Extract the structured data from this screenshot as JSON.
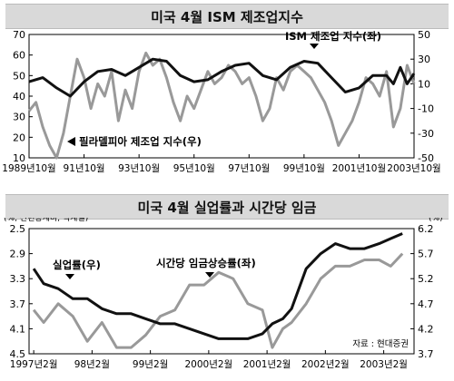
{
  "chart_data": [
    {
      "type": "line",
      "title": "미국 4월 ISM 제조업지수",
      "x_tick_labels": [
        "1989년10월",
        "91년10월",
        "93년10월",
        "95년10월",
        "97년10월",
        "99년10월",
        "2001년10월",
        "2003년10월"
      ],
      "y_left_ticks": [
        "70",
        "60",
        "50",
        "40",
        "30",
        "20",
        "10"
      ],
      "y_right_ticks": [
        "50",
        "30",
        "10",
        "-10",
        "-30",
        "-50"
      ],
      "ylim_left": [
        10,
        70
      ],
      "ylim_right": [
        -50,
        50
      ],
      "series": [
        {
          "name": "ISM 제조업 지수(좌)",
          "axis": "left",
          "color": "#111111",
          "x": [
            1989.75,
            1990.25,
            1990.75,
            1991.25,
            1991.75,
            1992.25,
            1992.75,
            1993.25,
            1993.75,
            1994.25,
            1994.75,
            1995.25,
            1995.75,
            1996.25,
            1996.75,
            1997.25,
            1997.75,
            1998.25,
            1998.75,
            1999.25,
            1999.75,
            2000.25,
            2000.75,
            2001.25,
            2001.75,
            2002.25,
            2002.75,
            2003.0,
            2003.25,
            2003.5,
            2003.75
          ],
          "y": [
            47,
            49,
            44,
            40,
            47,
            52,
            53,
            50,
            54,
            58,
            57,
            50,
            47,
            48,
            52,
            55,
            56,
            50,
            48,
            54,
            57,
            56,
            49,
            42,
            44,
            50,
            50,
            46,
            54,
            46,
            51
          ]
        },
        {
          "name": "필라델피아 제조업 지수(우)",
          "axis": "right",
          "color": "#999999",
          "x": [
            1989.75,
            1990.0,
            1990.25,
            1990.5,
            1990.75,
            1991.0,
            1991.25,
            1991.5,
            1991.75,
            1992.0,
            1992.25,
            1992.5,
            1992.75,
            1993.0,
            1993.25,
            1993.5,
            1993.75,
            1994.0,
            1994.25,
            1994.5,
            1994.75,
            1995.0,
            1995.25,
            1995.5,
            1995.75,
            1996.0,
            1996.25,
            1996.5,
            1996.75,
            1997.0,
            1997.25,
            1997.5,
            1997.75,
            1998.0,
            1998.25,
            1998.5,
            1998.75,
            1999.0,
            1999.25,
            1999.5,
            1999.75,
            2000.0,
            2000.25,
            2000.5,
            2000.75,
            2001.0,
            2001.25,
            2001.5,
            2001.75,
            2002.0,
            2002.25,
            2002.5,
            2002.75,
            2003.0,
            2003.25,
            2003.5,
            2003.75
          ],
          "y": [
            -12,
            -5,
            -25,
            -40,
            -50,
            -30,
            0,
            30,
            15,
            -10,
            10,
            0,
            20,
            -20,
            5,
            -10,
            20,
            35,
            25,
            30,
            15,
            -5,
            -20,
            0,
            -10,
            5,
            20,
            10,
            15,
            25,
            20,
            10,
            15,
            0,
            -20,
            -10,
            15,
            5,
            20,
            25,
            20,
            15,
            5,
            -5,
            -20,
            -40,
            -30,
            -20,
            -5,
            15,
            10,
            0,
            20,
            -25,
            -10,
            25,
            10
          ]
        }
      ],
      "annotations": [
        {
          "text": "ISM 제조업 지수(좌)",
          "series": "ISM 제조업 지수(좌)"
        },
        {
          "text": "필라델피아 제조업 지수(우)",
          "series": "필라델피아 제조업 지수(우)"
        }
      ]
    },
    {
      "type": "line",
      "title": "미국 4월 실업률과 시간당 임금",
      "left_axis_label": "(%, 전년동계비, 역계열)",
      "right_axis_label": "(%)",
      "x_tick_labels": [
        "1997년2월",
        "98년2월",
        "99년2월",
        "2000년2월",
        "2001년2월",
        "2002년2월",
        "2003년2월"
      ],
      "y_left_ticks": [
        "2.5",
        "2.9",
        "3.3",
        "3.7",
        "4.1",
        "4.5"
      ],
      "y_right_ticks": [
        "6.2",
        "5.7",
        "5.2",
        "4.7",
        "4.2",
        "3.7"
      ],
      "ylim_left_inverted": [
        2.5,
        4.5
      ],
      "ylim_right": [
        3.7,
        6.2
      ],
      "series": [
        {
          "name": "실업률(우)",
          "axis": "right",
          "color": "#111111",
          "x": [
            1997.08,
            1997.25,
            1997.5,
            1997.75,
            1998.0,
            1998.25,
            1998.5,
            1998.75,
            1999.0,
            1999.25,
            1999.5,
            1999.75,
            2000.0,
            2000.25,
            2000.5,
            2000.75,
            2001.0,
            2001.17,
            2001.35,
            2001.5,
            2001.75,
            2002.0,
            2002.25,
            2002.5,
            2002.75,
            2003.0,
            2003.2,
            2003.4
          ],
          "y": [
            5.4,
            5.1,
            5.0,
            4.8,
            4.8,
            4.6,
            4.5,
            4.5,
            4.4,
            4.3,
            4.3,
            4.2,
            4.1,
            4.0,
            4.0,
            4.0,
            4.1,
            4.3,
            4.4,
            4.6,
            5.4,
            5.7,
            5.9,
            5.8,
            5.8,
            5.9,
            6.0,
            6.1
          ]
        },
        {
          "name": "시간당 임금상승률(좌)",
          "axis": "left",
          "color": "#999999",
          "x": [
            1997.08,
            1997.25,
            1997.5,
            1997.75,
            1998.0,
            1998.25,
            1998.5,
            1998.75,
            1999.0,
            1999.25,
            1999.5,
            1999.75,
            2000.0,
            2000.25,
            2000.5,
            2000.75,
            2001.0,
            2001.17,
            2001.35,
            2001.5,
            2001.75,
            2002.0,
            2002.25,
            2002.5,
            2002.75,
            2003.0,
            2003.2,
            2003.4
          ],
          "y": [
            3.8,
            4.0,
            3.7,
            3.9,
            4.3,
            4.0,
            4.4,
            4.4,
            4.2,
            3.9,
            3.8,
            3.4,
            3.4,
            3.2,
            3.3,
            3.7,
            3.8,
            4.4,
            4.1,
            4.0,
            3.7,
            3.3,
            3.1,
            3.1,
            3.0,
            3.0,
            3.1,
            2.9
          ]
        }
      ],
      "annotations": [
        {
          "text": "실업률(우)",
          "series": "실업률(우)"
        },
        {
          "text": "시간당 임금상승률(좌)",
          "series": "시간당 임금상승률(좌)"
        }
      ],
      "source": "자료 : 현대증권"
    }
  ]
}
